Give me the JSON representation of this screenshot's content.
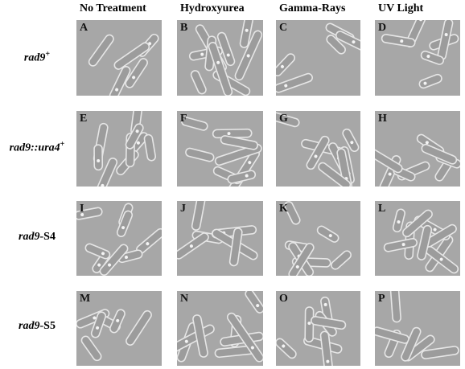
{
  "columns": [
    "No Treatment",
    "Hydroxyurea",
    "Gamma-Rays",
    "UV Light"
  ],
  "rows": [
    {
      "name": "rad9",
      "sup": "+"
    },
    {
      "name": "rad9::ura4",
      "sup": "+"
    },
    {
      "name": "rad9",
      "suffix": "-S4"
    },
    {
      "name": "rad9",
      "suffix": "-S5"
    }
  ],
  "panels": [
    [
      "A",
      "B",
      "C",
      "D"
    ],
    [
      "E",
      "F",
      "G",
      "H"
    ],
    [
      "I",
      "J",
      "K",
      "L"
    ],
    [
      "M",
      "N",
      "O",
      "P"
    ]
  ]
}
